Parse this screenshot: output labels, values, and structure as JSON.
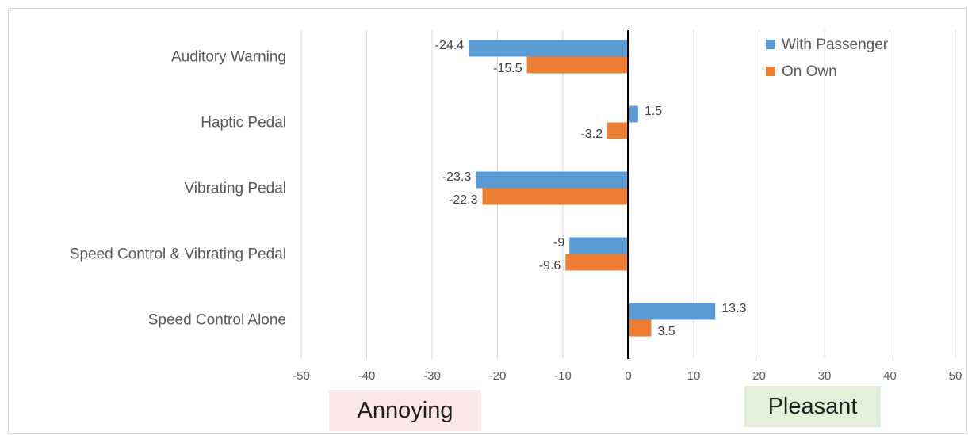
{
  "chart_data": {
    "type": "bar",
    "orientation": "horizontal",
    "categories": [
      "Auditory Warning",
      "Haptic Pedal",
      "Vibrating Pedal",
      "Speed Control & Vibrating Pedal",
      "Speed Control Alone"
    ],
    "series": [
      {
        "name": "With Passenger",
        "values": [
          -24.4,
          1.5,
          -23.3,
          -9,
          13.3
        ],
        "color": "#5b9bd5"
      },
      {
        "name": "On Own",
        "values": [
          -15.5,
          -3.2,
          -22.3,
          -9.6,
          3.5
        ],
        "color": "#ed7d31"
      }
    ],
    "xlim": [
      -50,
      50
    ],
    "xticks": [
      -50,
      -40,
      -30,
      -20,
      -10,
      0,
      10,
      20,
      30,
      40,
      50
    ],
    "grid": "vertical",
    "legend": "top-right",
    "data_labels": true
  },
  "annotations": {
    "negative_label": "Annoying",
    "positive_label": "Pleasant",
    "negative_bg": "#fde6e8",
    "positive_bg": "#e2efda"
  },
  "colors": {
    "grid": "#d9d9d9",
    "zero_axis": "#000000",
    "text": "#595959"
  }
}
